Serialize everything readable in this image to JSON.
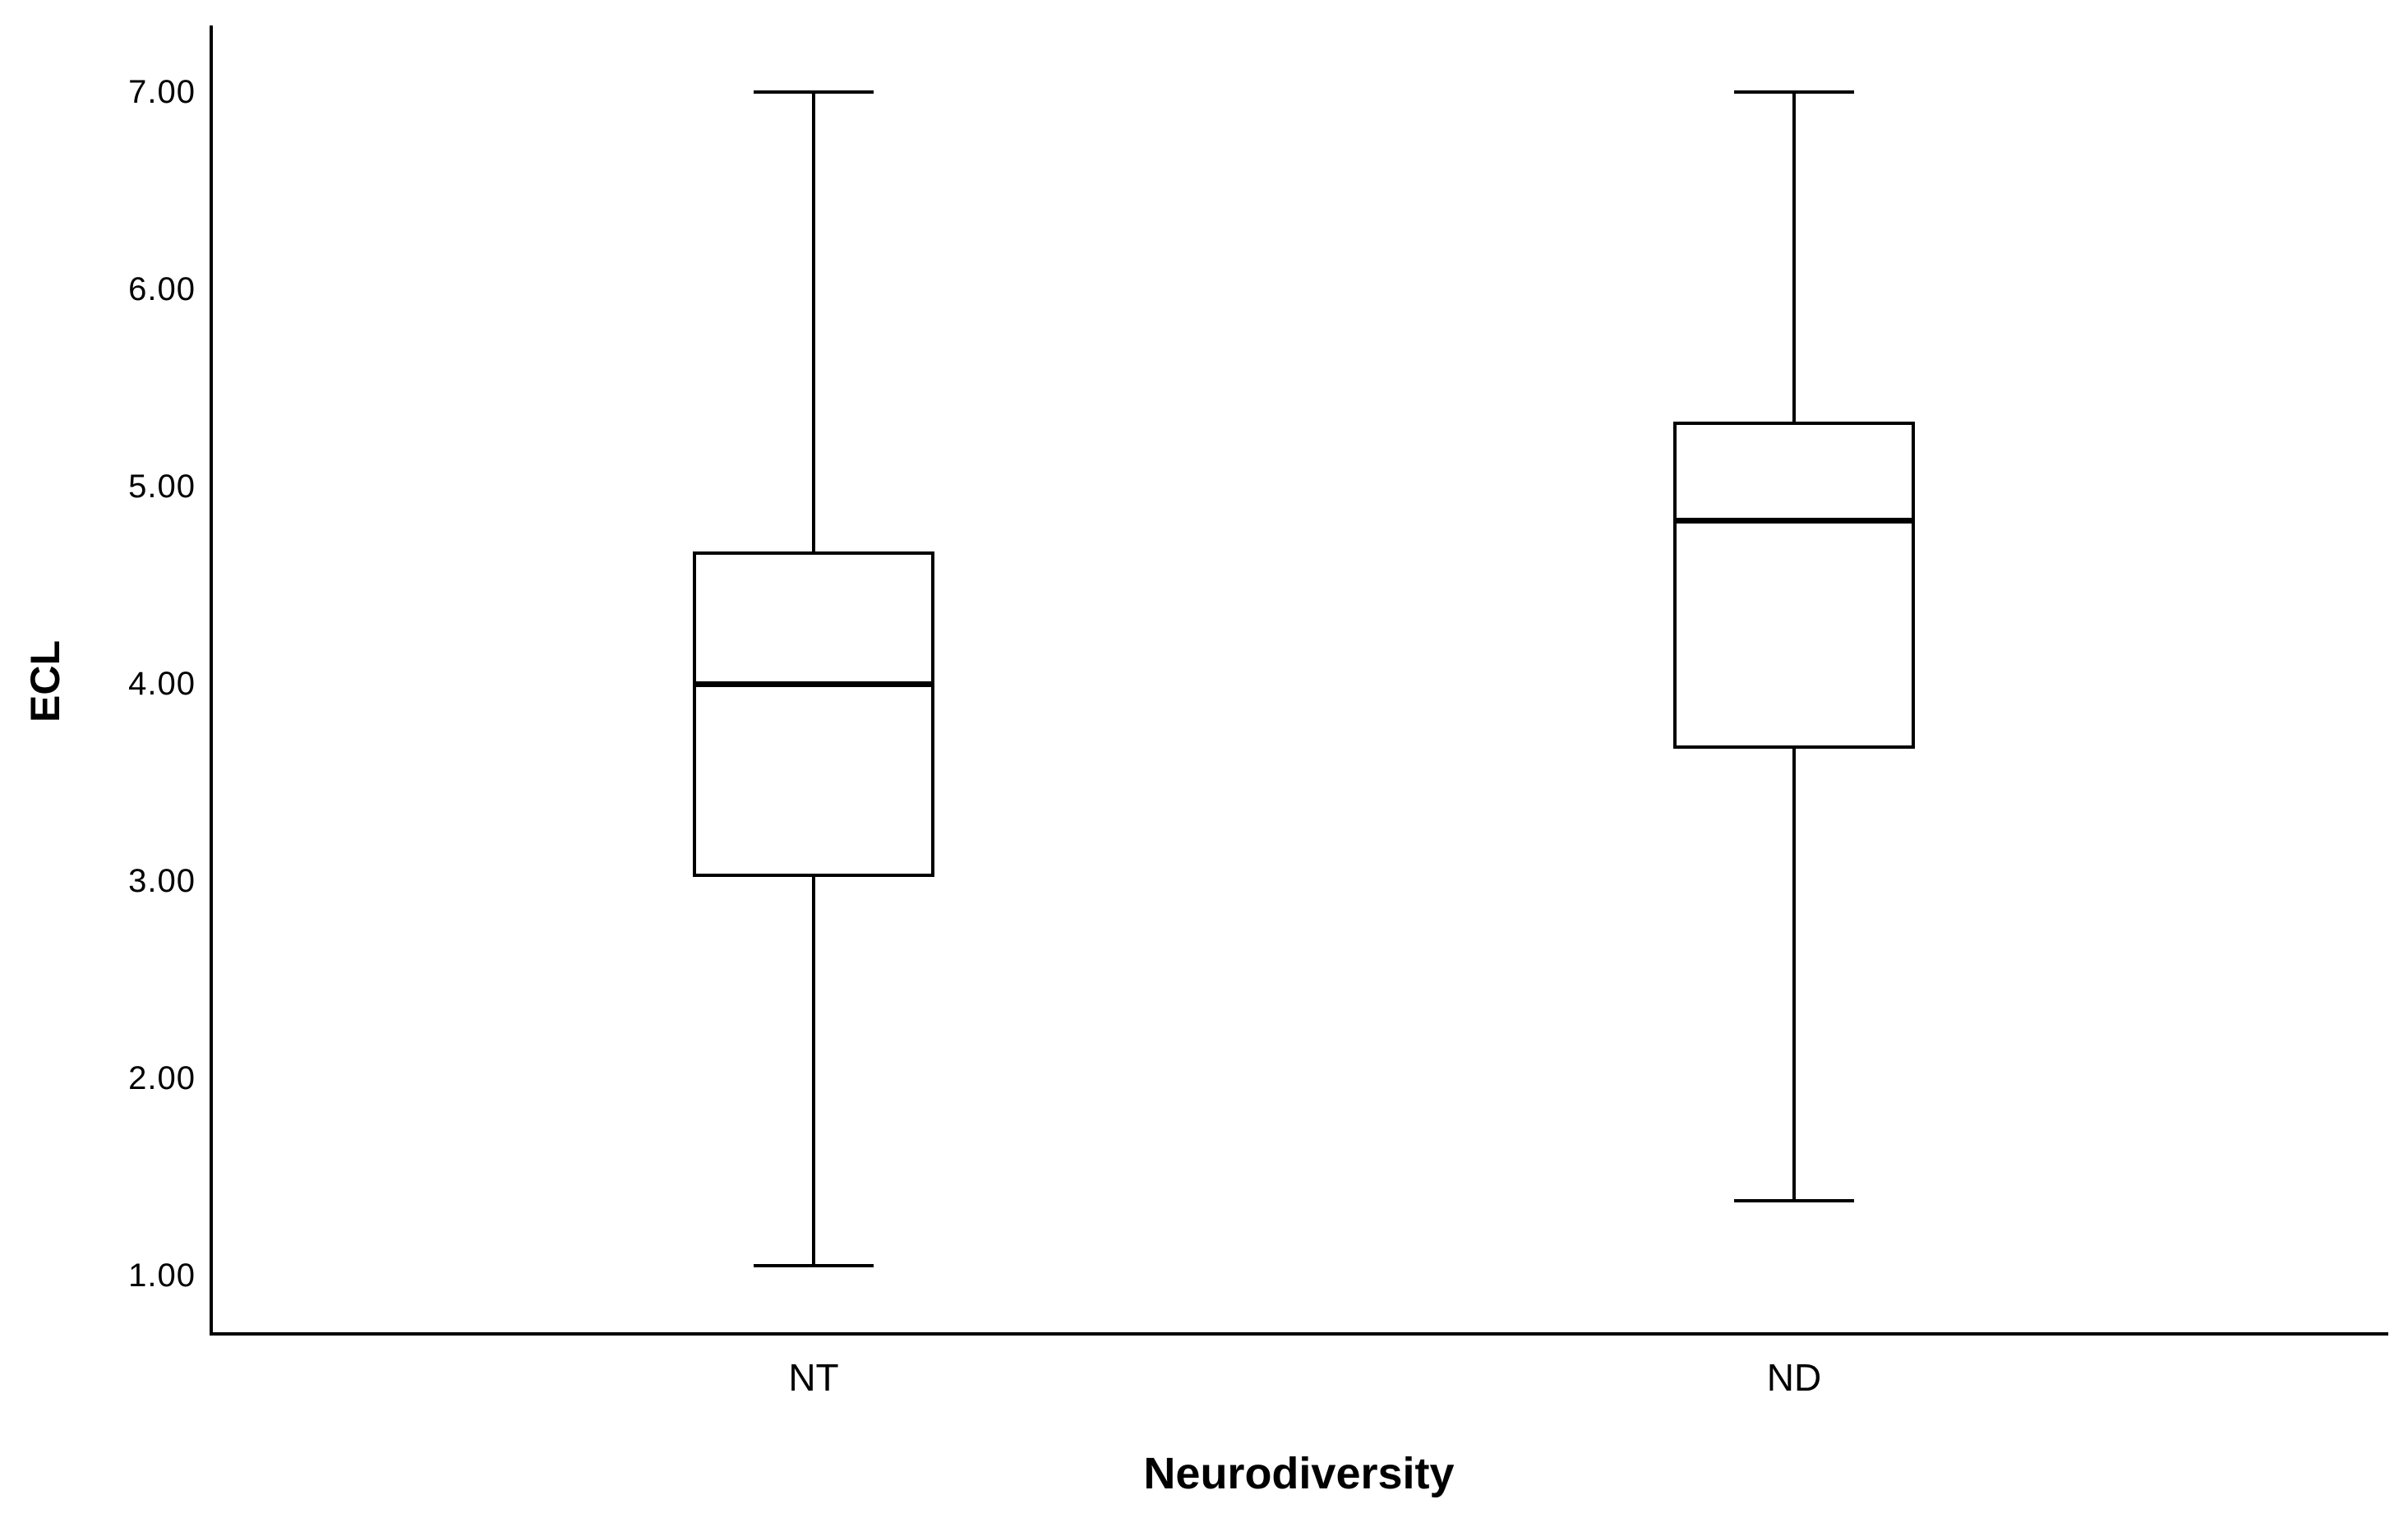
{
  "figure": {
    "y_axis_label": "ECL",
    "x_axis_label": "Neurodiversity"
  },
  "chart_data": {
    "type": "boxplot",
    "title": "",
    "xlabel": "Neurodiversity",
    "ylabel": "ECL",
    "categories": [
      "NT",
      "ND"
    ],
    "series": [
      {
        "category": "NT",
        "min": 1.05,
        "q1": 3.02,
        "median": 4.0,
        "q3": 4.67,
        "max": 7.0
      },
      {
        "category": "ND",
        "min": 1.38,
        "q1": 3.67,
        "median": 4.83,
        "q3": 5.33,
        "max": 7.0
      }
    ],
    "yticks": [
      7,
      6,
      5,
      4,
      3,
      2,
      1
    ],
    "ytick_labels": [
      "7.00",
      "6.00",
      "5.00",
      "4.00",
      "3.00",
      "2.00",
      "1.00"
    ],
    "ylim": [
      0.7,
      7.34
    ],
    "grid": false,
    "legend": false,
    "colors": {
      "line": "#000000",
      "box_fill": "#ffffff",
      "background": "#ffffff"
    }
  }
}
